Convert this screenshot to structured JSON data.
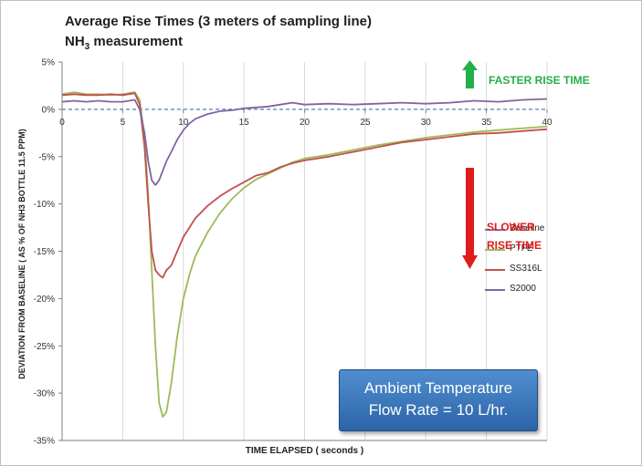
{
  "chart_data": {
    "type": "line",
    "title_line1": "Average Rise Times (3 meters of sampling line)",
    "title_line2_main": "NH",
    "title_line2_sub": "3",
    "title_line2_rest": " measurement",
    "xlabel": "TIME ELAPSED ( seconds )",
    "ylabel": "DEVIATION FROM BASELINE ( AS % OF NH3 BOTTLE 11.5 PPM)",
    "xlim": [
      0,
      40
    ],
    "ylim": [
      -35,
      5
    ],
    "x_ticks": [
      0,
      5,
      10,
      15,
      20,
      25,
      30,
      35,
      40
    ],
    "x_tick_labels": [
      "0",
      "5",
      "10",
      "15",
      "20",
      "25",
      "30",
      "35",
      "40"
    ],
    "y_ticks": [
      5,
      0,
      -5,
      -10,
      -15,
      -20,
      -25,
      -30,
      -35
    ],
    "y_tick_labels": [
      "5%",
      "0%",
      "-5%",
      "-10%",
      "-15%",
      "-20%",
      "-25%",
      "-30%",
      "-35%"
    ],
    "grid": "vertical",
    "legend_position": "right",
    "series": [
      {
        "name": "Baseline",
        "color": "#4f81bd",
        "style": "dashed",
        "points": [
          [
            0,
            0
          ],
          [
            40,
            0
          ]
        ]
      },
      {
        "name": "PTFE",
        "color": "#9bbb59",
        "style": "solid",
        "points": [
          [
            0,
            1.6
          ],
          [
            1,
            1.8
          ],
          [
            2,
            1.6
          ],
          [
            3,
            1.6
          ],
          [
            4,
            1.5
          ],
          [
            5,
            1.6
          ],
          [
            6,
            1.8
          ],
          [
            6.4,
            1
          ],
          [
            6.8,
            -3
          ],
          [
            7.1,
            -9
          ],
          [
            7.4,
            -17
          ],
          [
            7.7,
            -25
          ],
          [
            8,
            -31
          ],
          [
            8.3,
            -32.5
          ],
          [
            8.6,
            -32
          ],
          [
            9,
            -29
          ],
          [
            9.5,
            -24
          ],
          [
            10,
            -20
          ],
          [
            10.5,
            -17.5
          ],
          [
            11,
            -15.5
          ],
          [
            12,
            -13
          ],
          [
            13,
            -11
          ],
          [
            14,
            -9.5
          ],
          [
            15,
            -8.3
          ],
          [
            16,
            -7.4
          ],
          [
            17,
            -6.8
          ],
          [
            18,
            -6.2
          ],
          [
            19,
            -5.6
          ],
          [
            20,
            -5.2
          ],
          [
            22,
            -4.8
          ],
          [
            24,
            -4.3
          ],
          [
            26,
            -3.8
          ],
          [
            28,
            -3.4
          ],
          [
            30,
            -3
          ],
          [
            32,
            -2.7
          ],
          [
            34,
            -2.4
          ],
          [
            36,
            -2.2
          ],
          [
            38,
            -2
          ],
          [
            40,
            -1.8
          ]
        ]
      },
      {
        "name": "SS316L",
        "color": "#c0504d",
        "style": "solid",
        "points": [
          [
            0,
            1.5
          ],
          [
            1,
            1.6
          ],
          [
            2,
            1.5
          ],
          [
            3,
            1.5
          ],
          [
            4,
            1.6
          ],
          [
            5,
            1.5
          ],
          [
            6,
            1.7
          ],
          [
            6.4,
            0.5
          ],
          [
            6.8,
            -4
          ],
          [
            7.1,
            -10
          ],
          [
            7.4,
            -15
          ],
          [
            7.7,
            -17
          ],
          [
            8,
            -17.5
          ],
          [
            8.3,
            -17.8
          ],
          [
            8.6,
            -17
          ],
          [
            9,
            -16.5
          ],
          [
            9.5,
            -15
          ],
          [
            10,
            -13.5
          ],
          [
            10.5,
            -12.5
          ],
          [
            11,
            -11.5
          ],
          [
            12,
            -10.2
          ],
          [
            13,
            -9.2
          ],
          [
            14,
            -8.4
          ],
          [
            15,
            -7.7
          ],
          [
            16,
            -7
          ],
          [
            17,
            -6.7
          ],
          [
            18,
            -6.1
          ],
          [
            19,
            -5.7
          ],
          [
            20,
            -5.4
          ],
          [
            22,
            -5
          ],
          [
            24,
            -4.5
          ],
          [
            26,
            -4
          ],
          [
            28,
            -3.5
          ],
          [
            30,
            -3.2
          ],
          [
            32,
            -2.9
          ],
          [
            34,
            -2.6
          ],
          [
            36,
            -2.5
          ],
          [
            38,
            -2.3
          ],
          [
            40,
            -2.1
          ]
        ]
      },
      {
        "name": "S2000",
        "color": "#8064a2",
        "style": "solid",
        "points": [
          [
            0,
            0.8
          ],
          [
            1,
            0.9
          ],
          [
            2,
            0.8
          ],
          [
            3,
            0.9
          ],
          [
            4,
            0.8
          ],
          [
            5,
            0.8
          ],
          [
            6,
            1
          ],
          [
            6.4,
            0
          ],
          [
            6.8,
            -2.5
          ],
          [
            7.1,
            -5.5
          ],
          [
            7.4,
            -7.5
          ],
          [
            7.7,
            -8
          ],
          [
            8,
            -7.5
          ],
          [
            8.3,
            -6.5
          ],
          [
            8.6,
            -5.5
          ],
          [
            9,
            -4.5
          ],
          [
            9.5,
            -3.2
          ],
          [
            10,
            -2.2
          ],
          [
            10.5,
            -1.5
          ],
          [
            11,
            -1
          ],
          [
            12,
            -0.5
          ],
          [
            13,
            -0.2
          ],
          [
            14,
            -0.1
          ],
          [
            15,
            0.1
          ],
          [
            16,
            0.2
          ],
          [
            17,
            0.3
          ],
          [
            18,
            0.5
          ],
          [
            19,
            0.7
          ],
          [
            20,
            0.5
          ],
          [
            22,
            0.6
          ],
          [
            24,
            0.5
          ],
          [
            26,
            0.6
          ],
          [
            28,
            0.7
          ],
          [
            30,
            0.6
          ],
          [
            32,
            0.7
          ],
          [
            34,
            0.9
          ],
          [
            36,
            0.8
          ],
          [
            38,
            1
          ],
          [
            40,
            1.1
          ]
        ]
      }
    ]
  },
  "annotations": {
    "faster": "FASTER RISE TIME",
    "faster_color": "#22b04a",
    "slower_line1": "SLOWER",
    "slower_line2": "RISE TIME",
    "slower_color": "#e01b1b",
    "conditions_line1": "Ambient Temperature",
    "conditions_line2": "Flow Rate = 10 L/hr."
  }
}
